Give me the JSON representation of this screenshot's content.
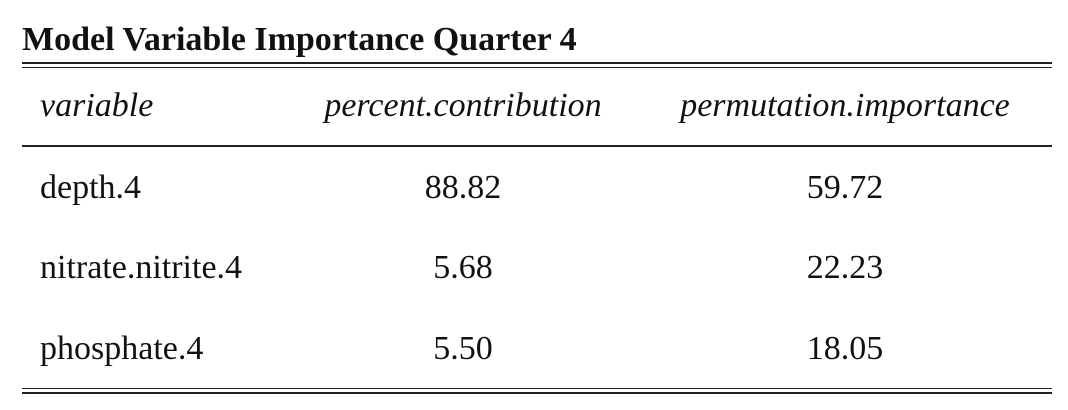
{
  "table": {
    "caption": "Model Variable Importance Quarter 4",
    "columns": [
      "variable",
      "percent.contribution",
      "permutation.importance"
    ],
    "rows": [
      [
        "depth.4",
        "88.82",
        "59.72"
      ],
      [
        "nitrate.nitrite.4",
        "5.68",
        "22.23"
      ],
      [
        "phosphate.4",
        "5.50",
        "18.05"
      ]
    ]
  }
}
